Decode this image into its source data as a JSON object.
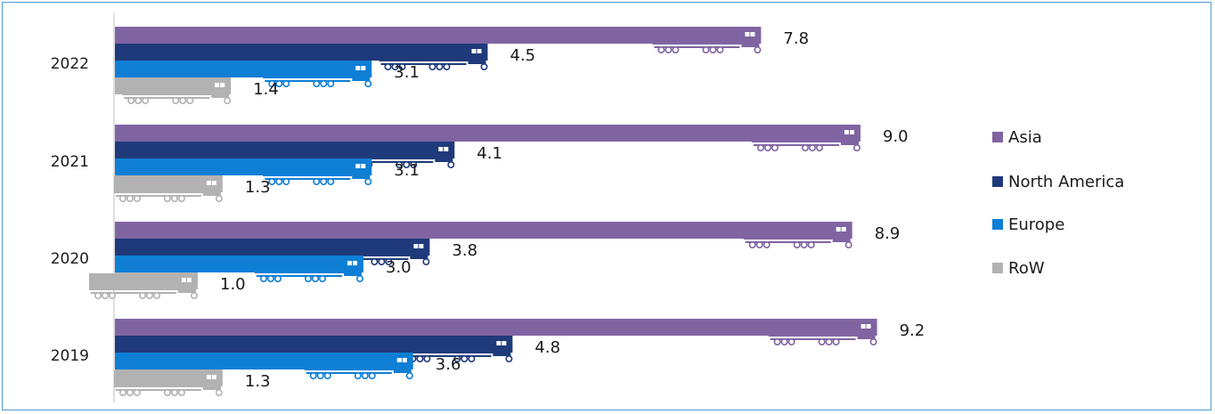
{
  "chart_data": {
    "type": "bar",
    "orientation": "horizontal",
    "categories": [
      "2022",
      "2021",
      "2020",
      "2019"
    ],
    "series": [
      {
        "name": "Asia",
        "color": "#8064a2",
        "values": [
          7.8,
          9.0,
          8.9,
          9.2
        ]
      },
      {
        "name": "North America",
        "color": "#1f3a7a",
        "values": [
          4.5,
          4.1,
          3.8,
          4.8
        ]
      },
      {
        "name": "Europe",
        "color": "#0f7fd6",
        "values": [
          3.1,
          3.1,
          3.0,
          3.6
        ]
      },
      {
        "name": "RoW",
        "color": "#b2b2b2",
        "values": [
          1.4,
          1.3,
          1.0,
          1.3
        ]
      }
    ],
    "value_labels": [
      [
        "7.8",
        "4.5",
        "3.1",
        "1.4"
      ],
      [
        "9.0",
        "4.1",
        "3.1",
        "1.3"
      ],
      [
        "8.9",
        "3.8",
        "3.0",
        "1.0"
      ],
      [
        "9.2",
        "4.8",
        "3.6",
        "1.3"
      ]
    ],
    "xlim": [
      0,
      10
    ],
    "bar_icon": "truck-icon",
    "legend_position": "right",
    "grid": false,
    "frame_color": "#4f9bd6"
  }
}
